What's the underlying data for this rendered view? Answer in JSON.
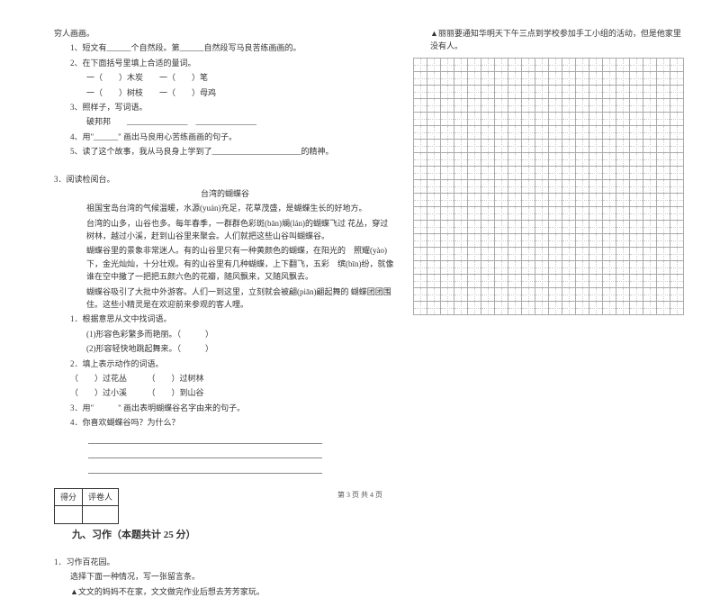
{
  "left": {
    "topLine": "穷人画画。",
    "q1": "1、短文有______个自然段。第______自然段写马良苦练画画的。",
    "q2": "2、在下面括号里填上合适的量词。",
    "q2a": "一（　　）木炭　　一（　　）笔",
    "q2b": "一（　　）树枝　　一（　　）母鸡",
    "q3": "3、照样子，写词语。",
    "q3a": "破邦邦　　_______________　_______________",
    "q4": "4、用\"______\" 画出马良用心苦练画画的句子。",
    "q5": "5、读了这个故事，我从马良身上学到了______________________的精神。",
    "read3": "3．阅读检阅台。",
    "title": "台湾的蝴蝶谷",
    "p1": "祖国宝岛台湾的气候温暖，水源(yuán)充足，花草茂盛，是蝴蝶生长的好地方。",
    "p2": "台湾的山多，山谷也多。每年春季，一群群色彩斑(bān)斓(lán)的蝴蝶飞过 花丛，穿过树林，越过小溪，赶到山谷里来聚会。人们就把这些山谷叫蝴蝶谷。",
    "p3": "蝴蝶谷里的景象非常迷人。有的山谷里只有一种黄颜色的蝴蝶，在阳光的　照耀(yào)下，金光灿灿，十分壮观。有的山谷里有几种蝴蝶，上下翻飞，五彩　缤(bīn)纷，就像谁在空中撒了一把把五颜六色的花瓣，随风飘来，又随风飘去。",
    "p4": "蝴蝶谷吸引了大批中外游客。人们一到这里，立刻就会被翩(piān)翩起舞的 蝴蝶团团围住。这些小精灵是在欢迎前来参观的客人哩。",
    "rq1": "1．根据意思从文中找词语。",
    "rq1a": "(1)形容色彩繁多而艳丽。（　　　）",
    "rq1b": "(2)形容轻快地跳起舞来。（　　　）",
    "rq2": "2．填上表示动作的词语。",
    "rq2a": "（　　）过花丛　　　（　　）过树林",
    "rq2b": "（　　）过小溪　　　（　　）到山谷",
    "rq3": "3．用\"　　　\" 画出表明蝴蝶谷名字由来的句子。",
    "rq4": "4．你喜欢蝴蝶谷吗？为什么？",
    "scoreHead1": "得分",
    "scoreHead2": "评卷人",
    "sectionTitle": "九、习作（本题共计 25 分）",
    "hw1": "1．习作百花园。",
    "hw2": "选择下面一种情况，写一张留言条。",
    "hw3": "▲文文的妈妈不在家，文文做完作业后想去芳芳家玩。"
  },
  "right": {
    "top": "▲丽丽要通知华明天下午三点到学校参加手工小组的活动，但是他家里 没有人。"
  },
  "grid": {
    "rows": 19,
    "cols": 20
  },
  "footer": "第 3 页 共 4 页"
}
